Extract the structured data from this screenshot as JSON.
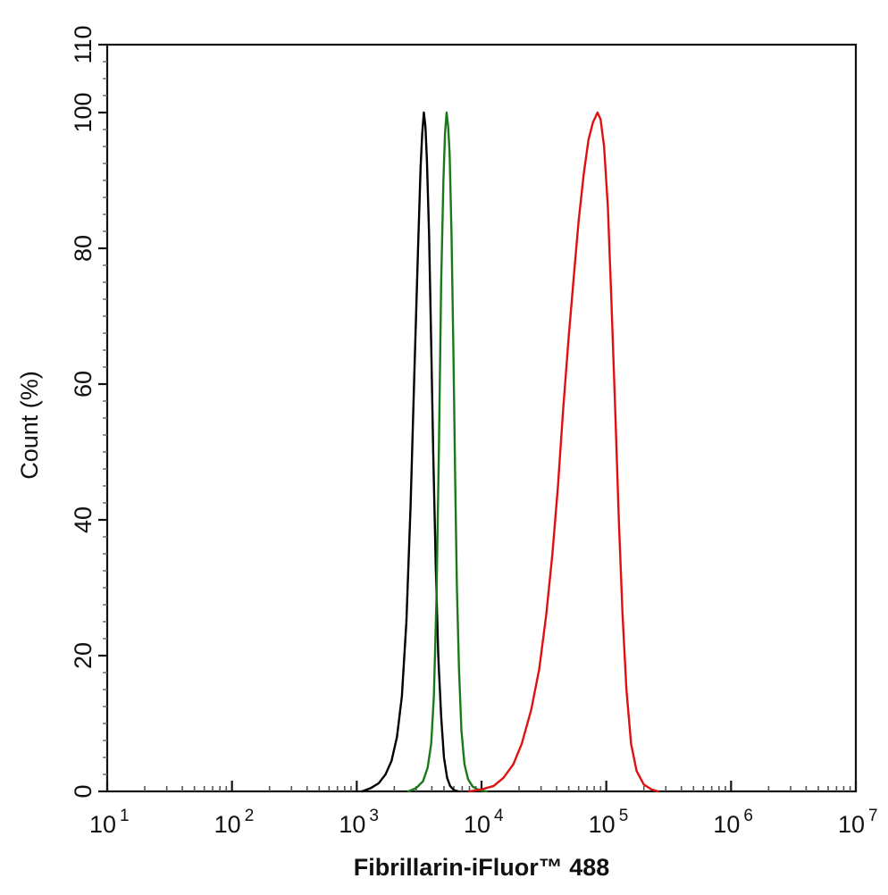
{
  "chart_data": {
    "type": "line",
    "xlabel": "Fibrillarin-iFluor™ 488",
    "ylabel": "Count  (%)",
    "xscale": "log",
    "xlim": [
      10,
      10000000
    ],
    "ylim": [
      0,
      110
    ],
    "x_ticks": [
      {
        "base": "10",
        "exp": "1"
      },
      {
        "base": "10",
        "exp": "2"
      },
      {
        "base": "10",
        "exp": "3"
      },
      {
        "base": "10",
        "exp": "4"
      },
      {
        "base": "10",
        "exp": "5"
      },
      {
        "base": "10",
        "exp": "6"
      },
      {
        "base": "10",
        "exp": "7"
      }
    ],
    "y_ticks": [
      "0",
      "20",
      "40",
      "60",
      "80",
      "100",
      "110"
    ],
    "grid": false,
    "legend": "none",
    "series": [
      {
        "color": "#000000",
        "points": [
          [
            1100,
            0
          ],
          [
            1300,
            0.5
          ],
          [
            1500,
            1.2
          ],
          [
            1700,
            2.5
          ],
          [
            1900,
            4.5
          ],
          [
            2100,
            8
          ],
          [
            2300,
            14
          ],
          [
            2500,
            25
          ],
          [
            2700,
            42
          ],
          [
            2900,
            62
          ],
          [
            3100,
            80
          ],
          [
            3250,
            92
          ],
          [
            3350,
            97
          ],
          [
            3450,
            100
          ],
          [
            3550,
            98
          ],
          [
            3650,
            93
          ],
          [
            3800,
            82
          ],
          [
            3950,
            66
          ],
          [
            4100,
            50
          ],
          [
            4300,
            33
          ],
          [
            4500,
            20
          ],
          [
            4750,
            11
          ],
          [
            5000,
            5
          ],
          [
            5300,
            2
          ],
          [
            5600,
            0.8
          ],
          [
            6000,
            0.2
          ],
          [
            6500,
            0
          ]
        ]
      },
      {
        "color": "#1a7a1a",
        "points": [
          [
            2600,
            0
          ],
          [
            3000,
            0.5
          ],
          [
            3400,
            1.5
          ],
          [
            3700,
            3.5
          ],
          [
            3950,
            7
          ],
          [
            4150,
            14
          ],
          [
            4350,
            28
          ],
          [
            4550,
            50
          ],
          [
            4750,
            75
          ],
          [
            4950,
            90
          ],
          [
            5100,
            97
          ],
          [
            5250,
            100
          ],
          [
            5400,
            98
          ],
          [
            5550,
            94
          ],
          [
            5750,
            82
          ],
          [
            5950,
            65
          ],
          [
            6150,
            46
          ],
          [
            6350,
            30
          ],
          [
            6600,
            18
          ],
          [
            6900,
            9
          ],
          [
            7300,
            4
          ],
          [
            7800,
            1.8
          ],
          [
            8500,
            0.7
          ],
          [
            9500,
            0.2
          ],
          [
            11000,
            0
          ]
        ]
      },
      {
        "color": "#e01010",
        "points": [
          [
            8000,
            0
          ],
          [
            10000,
            0.3
          ],
          [
            12500,
            0.8
          ],
          [
            15000,
            2
          ],
          [
            18000,
            4
          ],
          [
            21000,
            7
          ],
          [
            25000,
            12
          ],
          [
            29000,
            18
          ],
          [
            33000,
            26
          ],
          [
            37000,
            35
          ],
          [
            41000,
            45
          ],
          [
            45000,
            56
          ],
          [
            50000,
            67
          ],
          [
            55000,
            76
          ],
          [
            60000,
            84
          ],
          [
            66000,
            91
          ],
          [
            72000,
            96
          ],
          [
            78000,
            98.5
          ],
          [
            85000,
            100
          ],
          [
            90000,
            99
          ],
          [
            96000,
            95
          ],
          [
            103000,
            86
          ],
          [
            110000,
            72
          ],
          [
            118000,
            56
          ],
          [
            126000,
            40
          ],
          [
            135000,
            26
          ],
          [
            145000,
            15
          ],
          [
            158000,
            7
          ],
          [
            175000,
            3
          ],
          [
            200000,
            1
          ],
          [
            230000,
            0.3
          ],
          [
            260000,
            0
          ]
        ]
      }
    ]
  }
}
